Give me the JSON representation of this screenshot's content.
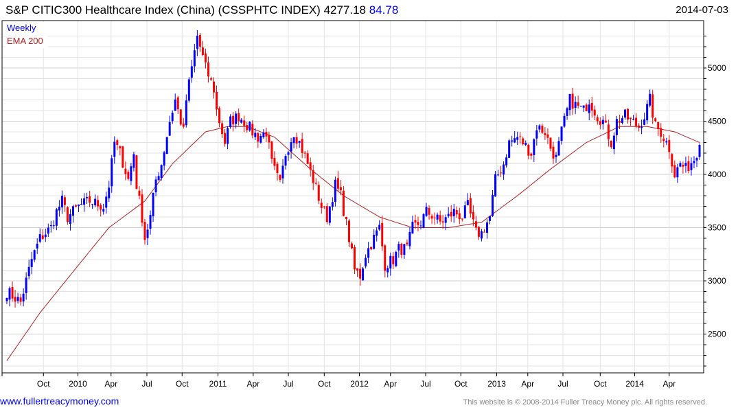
{
  "header": {
    "title": "S&P CITIC300 Healthcare Index (China) (CSSPHTC INDEX) 4277.18",
    "change": "84.78",
    "date": "2014-07-03"
  },
  "footer": {
    "link": "www.fullertreacymoney.com",
    "copyright": "This website is © 2008-2014 Fuller Treacy Money plc. All rights reserved."
  },
  "colors": {
    "up": "#0000ff",
    "down": "#ff0000",
    "ema": "#b22222",
    "grid": "#e3e3e3"
  },
  "chart_data": {
    "type": "candlestick",
    "title": "S&P CITIC300 Healthcare Index (China) (CSSPHTC INDEX)",
    "legend": [
      "Weekly",
      "EMA 200"
    ],
    "legend_placement": "top-left",
    "ylim": [
      2150,
      5350
    ],
    "y_ticks": [
      2500,
      3000,
      3500,
      4000,
      4500,
      5000
    ],
    "x_ticks": [
      "Oct",
      "2010",
      "Apr",
      "Jul",
      "Oct",
      "2011",
      "Apr",
      "Jul",
      "Oct",
      "2012",
      "Apr",
      "Jul",
      "Oct",
      "2013",
      "Apr",
      "Jul",
      "Oct",
      "2014",
      "Apr"
    ],
    "x_tick_weeks": [
      13.25,
      25.75,
      37.75,
      50.75,
      63.5,
      76.5,
      89.25,
      102,
      115,
      127.75,
      139,
      151.75,
      164.5,
      177.5,
      188.75,
      201.5,
      215,
      227.5,
      240
    ],
    "total_weeks": 252,
    "close_anchors_week_value": [
      [
        0,
        2900
      ],
      [
        5,
        2800
      ],
      [
        9,
        3200
      ],
      [
        12,
        3400
      ],
      [
        16,
        3500
      ],
      [
        18,
        3650
      ],
      [
        20,
        3750
      ],
      [
        22,
        3600
      ],
      [
        26,
        3700
      ],
      [
        30,
        3750
      ],
      [
        35,
        3700
      ],
      [
        37,
        3900
      ],
      [
        39,
        4300
      ],
      [
        41,
        4200
      ],
      [
        44,
        3950
      ],
      [
        46,
        4200
      ],
      [
        47,
        3900
      ],
      [
        49,
        3600
      ],
      [
        50,
        3400
      ],
      [
        52,
        3600
      ],
      [
        54,
        3950
      ],
      [
        56,
        4100
      ],
      [
        59,
        4500
      ],
      [
        61,
        4700
      ],
      [
        64,
        4400
      ],
      [
        65,
        4700
      ],
      [
        67,
        5000
      ],
      [
        69,
        5300
      ],
      [
        70,
        5200
      ],
      [
        72,
        5000
      ],
      [
        75,
        4800
      ],
      [
        76,
        4600
      ],
      [
        79,
        4300
      ],
      [
        81,
        4500
      ],
      [
        84,
        4550
      ],
      [
        86,
        4500
      ],
      [
        89,
        4400
      ],
      [
        91,
        4350
      ],
      [
        94,
        4400
      ],
      [
        96,
        4100
      ],
      [
        99,
        3900
      ],
      [
        101,
        4200
      ],
      [
        104,
        4400
      ],
      [
        106,
        4300
      ],
      [
        109,
        4100
      ],
      [
        111,
        3950
      ],
      [
        114,
        3700
      ],
      [
        116,
        3600
      ],
      [
        119,
        3900
      ],
      [
        121,
        3800
      ],
      [
        124,
        3400
      ],
      [
        126,
        3100
      ],
      [
        128,
        3050
      ],
      [
        130,
        3250
      ],
      [
        132,
        3350
      ],
      [
        135,
        3500
      ],
      [
        137,
        3150
      ],
      [
        140,
        3200
      ],
      [
        142,
        3300
      ],
      [
        145,
        3300
      ],
      [
        147,
        3500
      ],
      [
        150,
        3550
      ],
      [
        152,
        3650
      ],
      [
        155,
        3600
      ],
      [
        157,
        3550
      ],
      [
        160,
        3600
      ],
      [
        162,
        3650
      ],
      [
        165,
        3600
      ],
      [
        167,
        3700
      ],
      [
        170,
        3450
      ],
      [
        172,
        3450
      ],
      [
        175,
        3600
      ],
      [
        177,
        3950
      ],
      [
        180,
        4100
      ],
      [
        182,
        4300
      ],
      [
        185,
        4350
      ],
      [
        187,
        4300
      ],
      [
        190,
        4200
      ],
      [
        192,
        4450
      ],
      [
        195,
        4400
      ],
      [
        197,
        4250
      ],
      [
        199,
        4150
      ],
      [
        201,
        4400
      ],
      [
        204,
        4700
      ],
      [
        206,
        4650
      ],
      [
        209,
        4600
      ],
      [
        211,
        4700
      ],
      [
        214,
        4550
      ],
      [
        216,
        4500
      ],
      [
        219,
        4300
      ],
      [
        221,
        4500
      ],
      [
        224,
        4550
      ],
      [
        226,
        4500
      ],
      [
        229,
        4450
      ],
      [
        231,
        4550
      ],
      [
        233,
        4700
      ],
      [
        235,
        4450
      ],
      [
        237,
        4400
      ],
      [
        240,
        4250
      ],
      [
        242,
        4000
      ],
      [
        244,
        4100
      ],
      [
        246,
        4050
      ],
      [
        249,
        4150
      ],
      [
        251,
        4277.18
      ]
    ],
    "ema200_anchors_week_value": [
      [
        0,
        2250
      ],
      [
        12,
        2700
      ],
      [
        26,
        3150
      ],
      [
        37,
        3500
      ],
      [
        50,
        3750
      ],
      [
        60,
        4100
      ],
      [
        72,
        4400
      ],
      [
        80,
        4450
      ],
      [
        87,
        4450
      ],
      [
        97,
        4350
      ],
      [
        110,
        4050
      ],
      [
        122,
        3800
      ],
      [
        135,
        3600
      ],
      [
        147,
        3500
      ],
      [
        160,
        3500
      ],
      [
        172,
        3550
      ],
      [
        185,
        3800
      ],
      [
        197,
        4050
      ],
      [
        210,
        4300
      ],
      [
        222,
        4450
      ],
      [
        232,
        4450
      ],
      [
        242,
        4400
      ],
      [
        251,
        4300
      ]
    ]
  }
}
